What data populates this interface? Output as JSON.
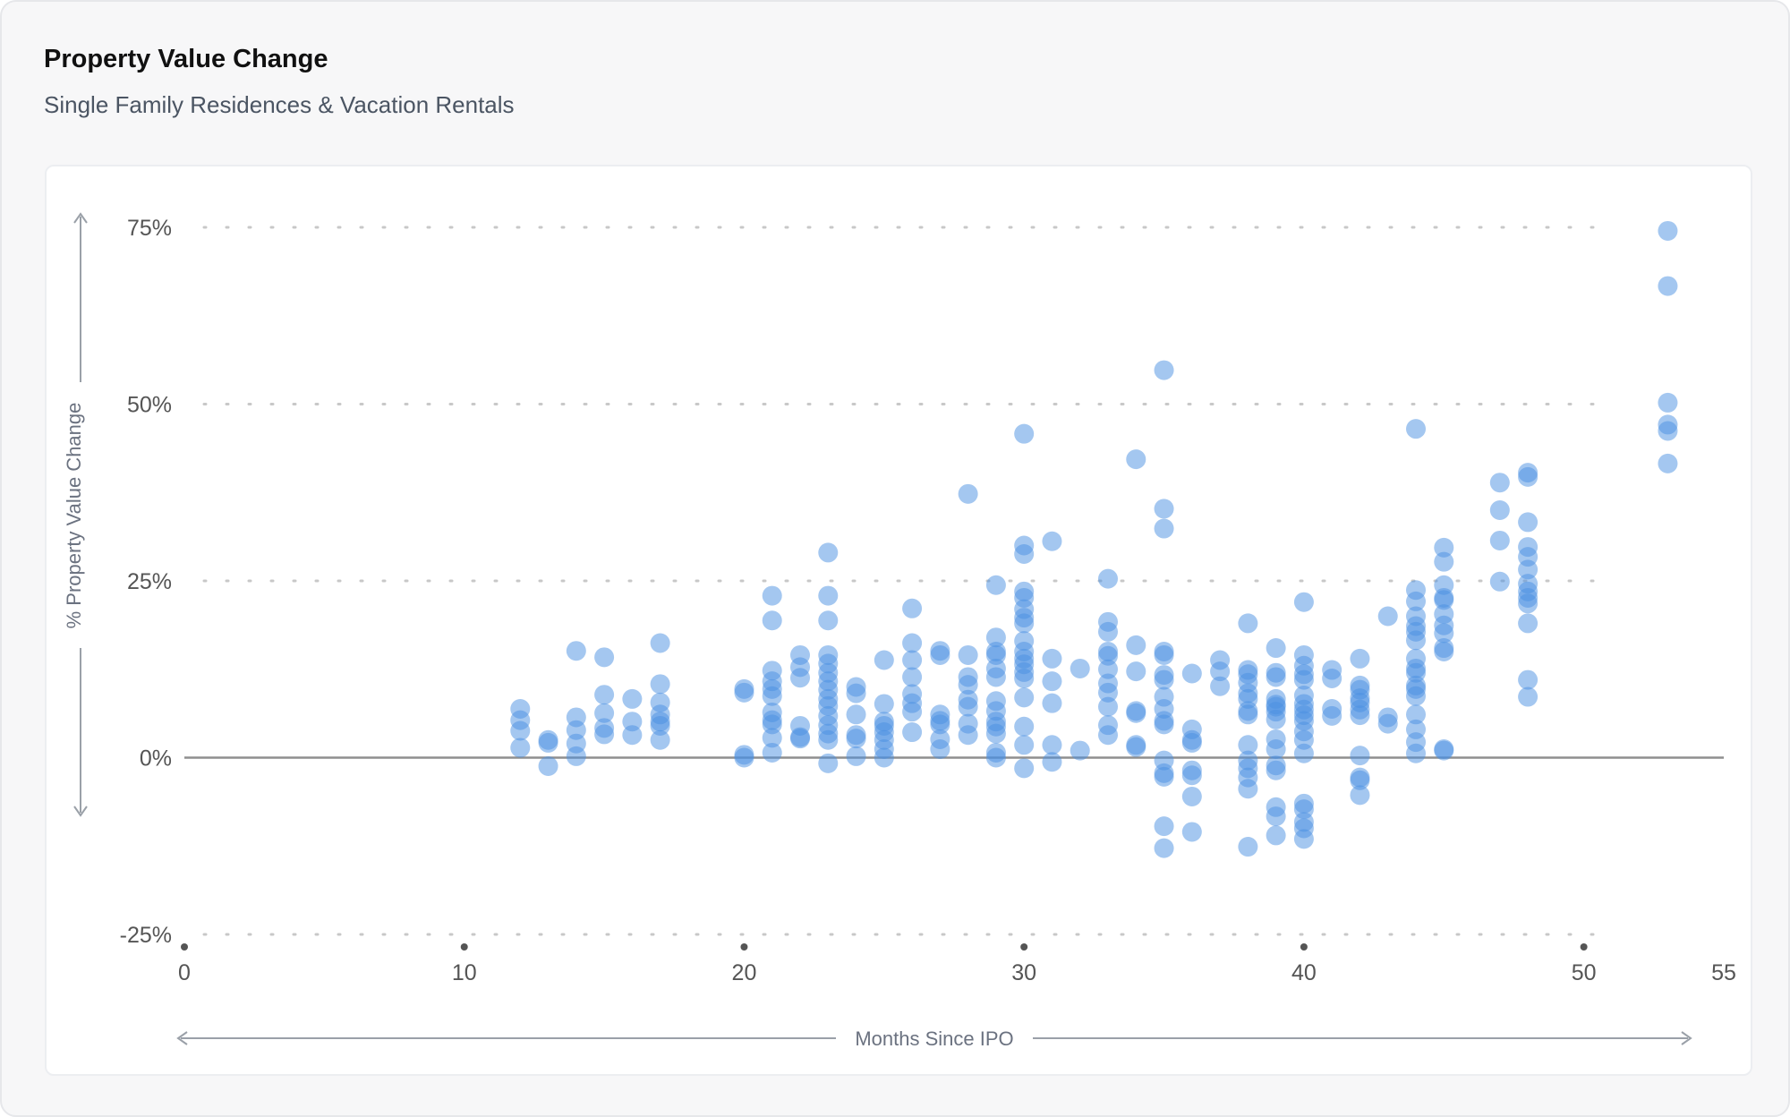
{
  "header": {
    "title": "Property Value Change",
    "subtitle": "Single Family Residences & Vacation Rentals"
  },
  "colors": {
    "point": "#4a90e2",
    "zero_line": "#8f8f8f",
    "grid": "#c8c8c8",
    "axis_text": "#555555",
    "arrow": "#9aa0a8"
  },
  "chart_data": {
    "type": "scatter",
    "xlabel": "Months Since IPO",
    "ylabel": "% Property Value Change",
    "xlim": [
      0,
      55
    ],
    "ylim": [
      -25,
      75
    ],
    "x_ticks": [
      "0",
      "10",
      "20",
      "30",
      "40",
      "50",
      "55"
    ],
    "y_ticks": [
      "75%",
      "50%",
      "25%",
      "0%",
      "-25%"
    ],
    "grid": "horizontal dotted",
    "points": [
      [
        12,
        6.9
      ],
      [
        12,
        5.3
      ],
      [
        12,
        3.8
      ],
      [
        12,
        1.4
      ],
      [
        13,
        2.5
      ],
      [
        13,
        2.1
      ],
      [
        13,
        -1.2
      ],
      [
        14,
        15.1
      ],
      [
        14,
        5.7
      ],
      [
        14,
        3.9
      ],
      [
        14,
        2
      ],
      [
        14,
        0.2
      ],
      [
        15,
        14.2
      ],
      [
        15,
        8.9
      ],
      [
        15,
        6.3
      ],
      [
        15,
        4.2
      ],
      [
        15,
        3.3
      ],
      [
        16,
        8.3
      ],
      [
        16,
        5.1
      ],
      [
        16,
        3.2
      ],
      [
        17,
        16.2
      ],
      [
        17,
        10.4
      ],
      [
        17,
        7.8
      ],
      [
        17,
        6.1
      ],
      [
        17,
        5.1
      ],
      [
        17,
        4.5
      ],
      [
        17,
        2.5
      ],
      [
        20,
        9.7
      ],
      [
        20,
        9.2
      ],
      [
        20,
        0.4
      ],
      [
        20,
        0
      ],
      [
        21,
        22.9
      ],
      [
        21,
        19.4
      ],
      [
        21,
        12.3
      ],
      [
        21,
        10.8
      ],
      [
        21,
        9.7
      ],
      [
        21,
        8.7
      ],
      [
        21,
        6.4
      ],
      [
        21,
        5.3
      ],
      [
        21,
        4.7
      ],
      [
        21,
        2.8
      ],
      [
        21,
        0.7
      ],
      [
        22,
        14.5
      ],
      [
        22,
        12.8
      ],
      [
        22,
        11.3
      ],
      [
        22,
        4.5
      ],
      [
        22,
        2.9
      ],
      [
        22,
        2.7
      ],
      [
        23,
        29
      ],
      [
        23,
        22.9
      ],
      [
        23,
        19.4
      ],
      [
        23,
        14.5
      ],
      [
        23,
        13.3
      ],
      [
        23,
        12
      ],
      [
        23,
        10.8
      ],
      [
        23,
        9.6
      ],
      [
        23,
        8.3
      ],
      [
        23,
        7.3
      ],
      [
        23,
        5.9
      ],
      [
        23,
        4.6
      ],
      [
        23,
        3.4
      ],
      [
        23,
        2.5
      ],
      [
        23,
        -0.8
      ],
      [
        24,
        10
      ],
      [
        24,
        9.1
      ],
      [
        24,
        6.1
      ],
      [
        24,
        3.2
      ],
      [
        24,
        2.7
      ],
      [
        24,
        0.2
      ],
      [
        25,
        13.8
      ],
      [
        25,
        7.6
      ],
      [
        25,
        5.1
      ],
      [
        25,
        4.5
      ],
      [
        25,
        3.6
      ],
      [
        25,
        2.5
      ],
      [
        25,
        1.2
      ],
      [
        25,
        0
      ],
      [
        26,
        21.1
      ],
      [
        26,
        16.2
      ],
      [
        26,
        13.8
      ],
      [
        26,
        11.4
      ],
      [
        26,
        9
      ],
      [
        26,
        7.7
      ],
      [
        26,
        6.5
      ],
      [
        26,
        3.6
      ],
      [
        27,
        15.1
      ],
      [
        27,
        14.5
      ],
      [
        27,
        6.1
      ],
      [
        27,
        5.2
      ],
      [
        27,
        4.7
      ],
      [
        27,
        2.6
      ],
      [
        27,
        1.2
      ],
      [
        28,
        37.3
      ],
      [
        28,
        14.5
      ],
      [
        28,
        11.4
      ],
      [
        28,
        10.3
      ],
      [
        28,
        8.2
      ],
      [
        28,
        7.2
      ],
      [
        28,
        4.8
      ],
      [
        28,
        3.2
      ],
      [
        29,
        24.4
      ],
      [
        29,
        17
      ],
      [
        29,
        15
      ],
      [
        29,
        14.5
      ],
      [
        29,
        12.6
      ],
      [
        29,
        11.4
      ],
      [
        29,
        8
      ],
      [
        29,
        6.6
      ],
      [
        29,
        5.1
      ],
      [
        29,
        4.4
      ],
      [
        29,
        3.4
      ],
      [
        29,
        0.7
      ],
      [
        29,
        0
      ],
      [
        30,
        45.8
      ],
      [
        30,
        30
      ],
      [
        30,
        28.8
      ],
      [
        30,
        23.5
      ],
      [
        30,
        22.6
      ],
      [
        30,
        21
      ],
      [
        30,
        19.8
      ],
      [
        30,
        19
      ],
      [
        30,
        16.5
      ],
      [
        30,
        15
      ],
      [
        30,
        14
      ],
      [
        30,
        13.2
      ],
      [
        30,
        12.1
      ],
      [
        30,
        11.2
      ],
      [
        30,
        8.5
      ],
      [
        30,
        4.4
      ],
      [
        30,
        1.8
      ],
      [
        30,
        -1.5
      ],
      [
        31,
        30.6
      ],
      [
        31,
        14
      ],
      [
        31,
        10.8
      ],
      [
        31,
        7.7
      ],
      [
        31,
        1.8
      ],
      [
        31,
        -0.6
      ],
      [
        32,
        12.6
      ],
      [
        32,
        1
      ],
      [
        33,
        25.3
      ],
      [
        33,
        19.2
      ],
      [
        33,
        17.8
      ],
      [
        33,
        15
      ],
      [
        33,
        14.4
      ],
      [
        33,
        12.5
      ],
      [
        33,
        10.5
      ],
      [
        33,
        9.2
      ],
      [
        33,
        7.2
      ],
      [
        33,
        4.6
      ],
      [
        33,
        3.2
      ],
      [
        34,
        42.2
      ],
      [
        34,
        15.9
      ],
      [
        34,
        12.2
      ],
      [
        34,
        6.6
      ],
      [
        34,
        6.3
      ],
      [
        34,
        1.8
      ],
      [
        34,
        1.5
      ],
      [
        35,
        54.8
      ],
      [
        35,
        35.2
      ],
      [
        35,
        32.4
      ],
      [
        35,
        15
      ],
      [
        35,
        14.5
      ],
      [
        35,
        11.7
      ],
      [
        35,
        11
      ],
      [
        35,
        8.6
      ],
      [
        35,
        6.9
      ],
      [
        35,
        5.2
      ],
      [
        35,
        4.7
      ],
      [
        35,
        -0.4
      ],
      [
        35,
        -2.2
      ],
      [
        35,
        -2.7
      ],
      [
        35,
        -9.7
      ],
      [
        35,
        -12.8
      ],
      [
        36,
        11.9
      ],
      [
        36,
        4
      ],
      [
        36,
        2.5
      ],
      [
        36,
        2.1
      ],
      [
        36,
        -1.8
      ],
      [
        36,
        -2.5
      ],
      [
        36,
        -5.5
      ],
      [
        36,
        -10.5
      ],
      [
        37,
        13.8
      ],
      [
        37,
        12.2
      ],
      [
        37,
        10.1
      ],
      [
        38,
        19
      ],
      [
        38,
        12.4
      ],
      [
        38,
        11.8
      ],
      [
        38,
        10.6
      ],
      [
        38,
        9.1
      ],
      [
        38,
        8.3
      ],
      [
        38,
        6.6
      ],
      [
        38,
        6.1
      ],
      [
        38,
        1.8
      ],
      [
        38,
        -0.4
      ],
      [
        38,
        -1.5
      ],
      [
        38,
        -2.8
      ],
      [
        38,
        -4.4
      ],
      [
        38,
        -12.6
      ],
      [
        39,
        15.5
      ],
      [
        39,
        12
      ],
      [
        39,
        11.4
      ],
      [
        39,
        8.3
      ],
      [
        39,
        7.5
      ],
      [
        39,
        7.2
      ],
      [
        39,
        6.5
      ],
      [
        39,
        5.4
      ],
      [
        39,
        2.6
      ],
      [
        39,
        1.2
      ],
      [
        39,
        -1.1
      ],
      [
        39,
        -1.8
      ],
      [
        39,
        -7
      ],
      [
        39,
        -8.3
      ],
      [
        39,
        -11
      ],
      [
        40,
        22
      ],
      [
        40,
        14.5
      ],
      [
        40,
        13
      ],
      [
        40,
        11.8
      ],
      [
        40,
        11
      ],
      [
        40,
        8.8
      ],
      [
        40,
        7.6
      ],
      [
        40,
        6.8
      ],
      [
        40,
        6
      ],
      [
        40,
        5.2
      ],
      [
        40,
        3.7
      ],
      [
        40,
        2.5
      ],
      [
        40,
        0.6
      ],
      [
        40,
        -6.5
      ],
      [
        40,
        -7.3
      ],
      [
        40,
        -9.1
      ],
      [
        40,
        -10
      ],
      [
        40,
        -11.5
      ],
      [
        41,
        12.4
      ],
      [
        41,
        11.2
      ],
      [
        41,
        6.9
      ],
      [
        41,
        5.9
      ],
      [
        42,
        14
      ],
      [
        42,
        10.2
      ],
      [
        42,
        9.6
      ],
      [
        42,
        8.4
      ],
      [
        42,
        7.8
      ],
      [
        42,
        6.8
      ],
      [
        42,
        6
      ],
      [
        42,
        0.3
      ],
      [
        42,
        -2.8
      ],
      [
        42,
        -3.2
      ],
      [
        42,
        -5.3
      ],
      [
        43,
        20
      ],
      [
        43,
        5.7
      ],
      [
        43,
        4.8
      ],
      [
        44,
        46.5
      ],
      [
        44,
        23.7
      ],
      [
        44,
        22.1
      ],
      [
        44,
        20
      ],
      [
        44,
        18.6
      ],
      [
        44,
        17.8
      ],
      [
        44,
        16.6
      ],
      [
        44,
        14
      ],
      [
        44,
        12.6
      ],
      [
        44,
        12
      ],
      [
        44,
        10.2
      ],
      [
        44,
        9.7
      ],
      [
        44,
        8.7
      ],
      [
        44,
        6.1
      ],
      [
        44,
        4
      ],
      [
        44,
        2.2
      ],
      [
        44,
        0.6
      ],
      [
        45,
        29.7
      ],
      [
        45,
        27.7
      ],
      [
        45,
        24.4
      ],
      [
        45,
        22.6
      ],
      [
        45,
        22.3
      ],
      [
        45,
        20.3
      ],
      [
        45,
        18.7
      ],
      [
        45,
        17.6
      ],
      [
        45,
        15.5
      ],
      [
        45,
        15
      ],
      [
        45,
        1.2
      ],
      [
        45,
        1
      ],
      [
        47,
        38.9
      ],
      [
        47,
        35
      ],
      [
        47,
        30.7
      ],
      [
        47,
        24.9
      ],
      [
        48,
        40.3
      ],
      [
        48,
        39.7
      ],
      [
        48,
        33.3
      ],
      [
        48,
        29.8
      ],
      [
        48,
        28.4
      ],
      [
        48,
        26.6
      ],
      [
        48,
        24.6
      ],
      [
        48,
        23.5
      ],
      [
        48,
        22.6
      ],
      [
        48,
        21.8
      ],
      [
        48,
        19
      ],
      [
        48,
        11
      ],
      [
        48,
        8.6
      ],
      [
        53,
        74.5
      ],
      [
        53,
        66.7
      ],
      [
        53,
        50.2
      ],
      [
        53,
        47.1
      ],
      [
        53,
        46.2
      ],
      [
        53,
        41.6
      ]
    ]
  }
}
